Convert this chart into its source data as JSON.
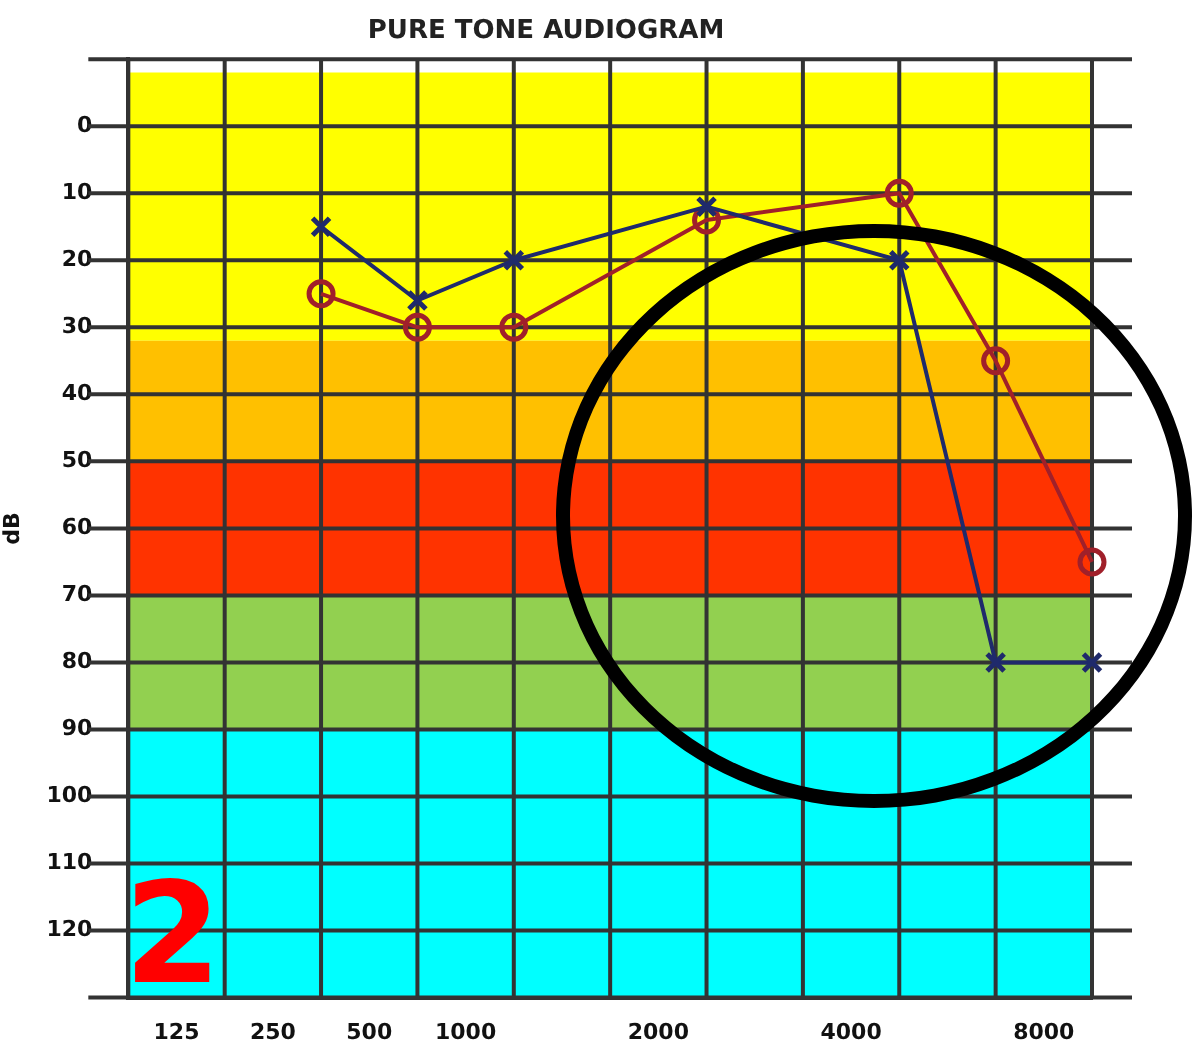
{
  "chart_data": {
    "type": "line",
    "title": "PURE TONE AUDIOGRAM",
    "ylabel": "dB",
    "categories": [
      null,
      "125",
      null,
      "250",
      null,
      "500",
      null,
      "1000",
      null,
      null,
      null,
      "2000",
      null,
      null,
      null,
      "4000",
      null,
      null,
      null,
      "8000",
      null
    ],
    "ylim": [
      130,
      -10
    ],
    "yticks": [
      {
        "value": -10,
        "label": null
      },
      0,
      10,
      20,
      30,
      40,
      50,
      60,
      70,
      80,
      90,
      100,
      110,
      120,
      {
        "value": 130,
        "label": null
      }
    ],
    "grid": true,
    "legend": false,
    "line_style": "solid",
    "bands": [
      {
        "axis": "y",
        "from": -8,
        "to": 32,
        "color": "#ffff00"
      },
      {
        "axis": "y",
        "from": 32,
        "to": 50,
        "color": "#ffc000"
      },
      {
        "axis": "y",
        "from": 50,
        "to": 70,
        "color": "#ff3300"
      },
      {
        "axis": "y",
        "from": 70,
        "to": 90,
        "color": "#92d050"
      },
      {
        "axis": "y",
        "from": 90,
        "to": 130,
        "color": "#00ffff"
      }
    ],
    "annotations": [
      "2"
    ],
    "series": [
      {
        "color": "#1f2a6b",
        "marker": "cross",
        "values": [
          null,
          null,
          null,
          null,
          15,
          null,
          26,
          null,
          20,
          null,
          null,
          null,
          12,
          null,
          null,
          null,
          20,
          null,
          80,
          null,
          80
        ]
      },
      {
        "color": "#a0202a",
        "marker": "circle",
        "values": [
          null,
          null,
          null,
          null,
          25,
          null,
          30,
          null,
          30,
          null,
          null,
          null,
          14,
          null,
          null,
          null,
          10,
          null,
          35,
          null,
          65
        ]
      }
    ]
  }
}
